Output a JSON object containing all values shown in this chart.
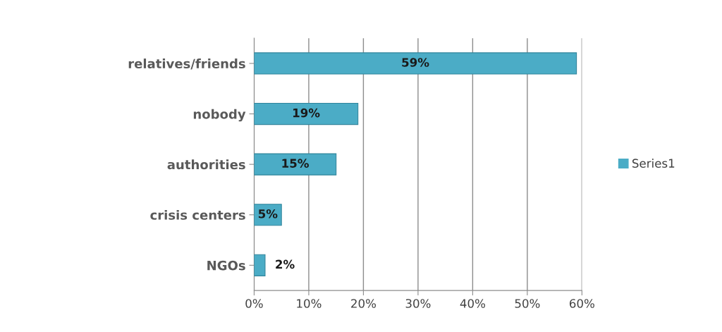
{
  "chart_data": {
    "type": "bar",
    "orientation": "horizontal",
    "categories": [
      "relatives/friends",
      "nobody",
      "authorities",
      "crisis centers",
      "NGOs"
    ],
    "series": [
      {
        "name": "Series1",
        "color": "#4bacc6",
        "values": [
          59,
          19,
          15,
          5,
          2
        ],
        "value_labels": [
          "59%",
          "19%",
          "15%",
          "5%",
          "2%"
        ]
      }
    ],
    "xlim": [
      0,
      60
    ],
    "xticks": [
      {
        "value": 0,
        "label": "0%"
      },
      {
        "value": 10,
        "label": "10%"
      },
      {
        "value": 20,
        "label": "20%"
      },
      {
        "value": 30,
        "label": "30%"
      },
      {
        "value": 40,
        "label": "40%"
      },
      {
        "value": 50,
        "label": "50%"
      },
      {
        "value": 60,
        "label": "60%"
      }
    ],
    "grid": "x",
    "legend": "right"
  }
}
